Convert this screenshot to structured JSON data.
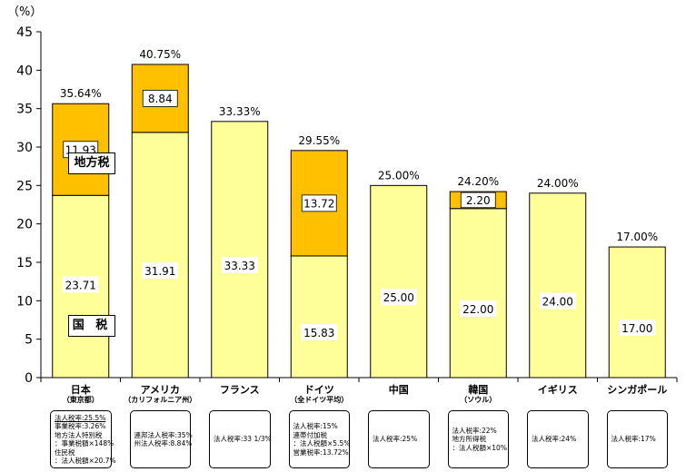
{
  "unit_label": "（%）",
  "chart_data": {
    "type": "bar",
    "stacked": true,
    "ylim": [
      0,
      45
    ],
    "yticks": [
      0,
      5,
      10,
      15,
      20,
      25,
      30,
      35,
      40,
      45
    ],
    "colors": {
      "national": "#FFFF99",
      "local": "#FFC000"
    },
    "categories": [
      {
        "name": "日本",
        "sub": "（東京都）",
        "national": 23.71,
        "local": 11.93,
        "total": "35.64%",
        "national_label": "23.71",
        "local_label": "11.93"
      },
      {
        "name": "アメリカ",
        "sub": "（カリフォルニア州）",
        "national": 31.91,
        "local": 8.84,
        "total": "40.75%",
        "national_label": "31.91",
        "local_label": "8.84"
      },
      {
        "name": "フランス",
        "sub": "",
        "national": 33.33,
        "local": 0,
        "total": "33.33%",
        "national_label": "33.33",
        "local_label": ""
      },
      {
        "name": "ドイツ",
        "sub": "（全ドイツ平均）",
        "national": 15.83,
        "local": 13.72,
        "total": "29.55%",
        "national_label": "15.83",
        "local_label": "13.72"
      },
      {
        "name": "中国",
        "sub": "",
        "national": 25.0,
        "local": 0,
        "total": "25.00%",
        "national_label": "25.00",
        "local_label": ""
      },
      {
        "name": "韓国",
        "sub": "（ソウル）",
        "national": 22.0,
        "local": 2.2,
        "total": "24.20%",
        "national_label": "22.00",
        "local_label": "2.20"
      },
      {
        "name": "イギリス",
        "sub": "",
        "national": 24.0,
        "local": 0,
        "total": "24.00%",
        "national_label": "24.00",
        "local_label": ""
      },
      {
        "name": "シンガポール",
        "sub": "",
        "national": 17.0,
        "local": 0,
        "total": "17.00%",
        "national_label": "17.00",
        "local_label": ""
      }
    ],
    "legend_in_bar": {
      "local": "地方税",
      "national": "国 税"
    }
  },
  "notes": [
    [
      "法人税率:25.5%",
      "事業税率:3.26%",
      "地方法人特別税",
      "：事業税額×148%",
      "住民税",
      "：法人税額×20.7%"
    ],
    [
      "連邦法人税率:35%",
      "州法人税率:8.84%"
    ],
    [
      "法人税率:33 1/3%"
    ],
    [
      "法人税率:15%",
      "連帯付加税",
      "：法人税額×5.5%",
      "営業税率:13.72%"
    ],
    [
      "法人税率:25%"
    ],
    [
      "法人税率:22%",
      "地方所得税",
      "：法人税額×10%"
    ],
    [
      "法人税率:24%"
    ],
    [
      "法人税率:17%"
    ]
  ]
}
